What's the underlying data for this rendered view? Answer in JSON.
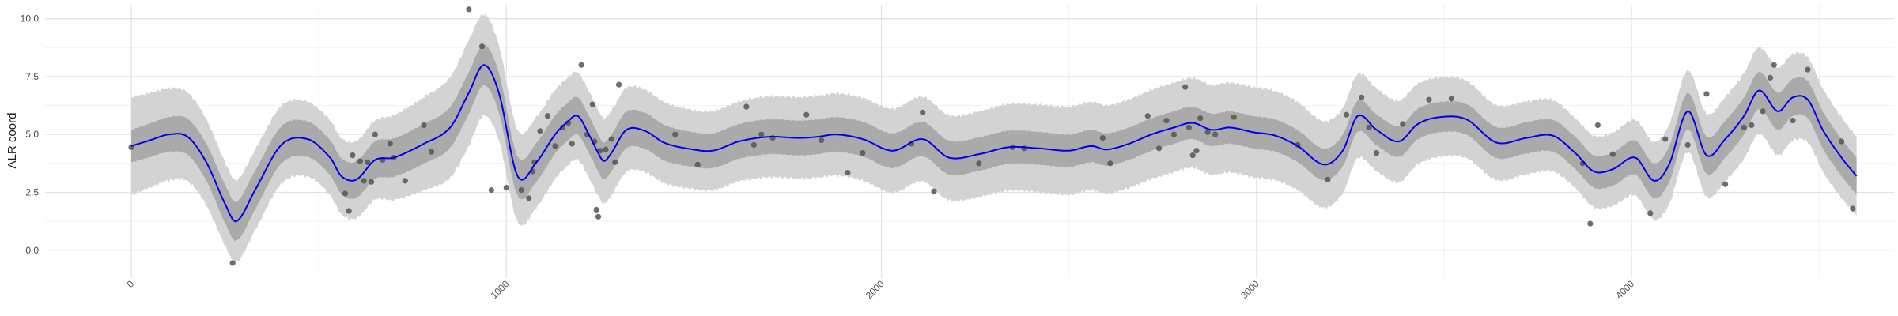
{
  "chart_data": {
    "type": "line",
    "title": "",
    "xlabel": "",
    "ylabel": "ALR coord",
    "xlim": [
      -230,
      4700
    ],
    "ylim": [
      -1.2,
      10.6
    ],
    "x_ticks": [
      0,
      1000,
      2000,
      3000,
      4000
    ],
    "x_tick_labels": [
      "0",
      "1000",
      "2000",
      "3000",
      "4000"
    ],
    "y_ticks": [
      0.0,
      2.5,
      5.0,
      7.5,
      10.0
    ],
    "y_tick_labels": [
      "0.0",
      "2.5",
      "5.0",
      "7.5",
      "10.0"
    ],
    "grid": true,
    "legend": "none",
    "colors": {
      "mean_line": "#0000ee",
      "inner_band": "#aaaaaa",
      "outer_band": "#d3d3d3",
      "points": "#555555",
      "grid_major": "#e2e2e2",
      "grid_minor": "#f1f1f1"
    },
    "mean_curve": {
      "x": [
        0,
        50,
        100,
        150,
        200,
        250,
        280,
        330,
        400,
        470,
        530,
        560,
        600,
        650,
        700,
        780,
        850,
        900,
        940,
        980,
        1030,
        1080,
        1130,
        1160,
        1190,
        1220,
        1245,
        1260,
        1280,
        1320,
        1370,
        1420,
        1480,
        1550,
        1620,
        1700,
        1780,
        1830,
        1880,
        1950,
        2030,
        2110,
        2180,
        2260,
        2340,
        2420,
        2500,
        2560,
        2600,
        2660,
        2720,
        2780,
        2830,
        2880,
        2930,
        2990,
        3050,
        3110,
        3180,
        3230,
        3270,
        3320,
        3380,
        3430,
        3490,
        3560,
        3640,
        3720,
        3790,
        3850,
        3900,
        3950,
        4010,
        4060,
        4100,
        4150,
        4200,
        4250,
        4300,
        4340,
        4390,
        4430,
        4470,
        4510,
        4560,
        4600
      ],
      "y": [
        4.5,
        4.75,
        5.0,
        4.9,
        3.8,
        2.0,
        1.25,
        2.6,
        4.55,
        4.8,
        4.0,
        3.2,
        3.05,
        3.9,
        4.0,
        4.6,
        5.3,
        6.8,
        8.0,
        6.8,
        3.2,
        3.8,
        5.0,
        5.5,
        5.8,
        5.0,
        4.2,
        3.85,
        4.2,
        5.2,
        5.15,
        4.65,
        4.4,
        4.3,
        4.7,
        4.9,
        4.85,
        4.9,
        5.0,
        4.8,
        4.3,
        4.8,
        4.0,
        4.15,
        4.45,
        4.4,
        4.3,
        4.5,
        4.35,
        4.6,
        5.0,
        5.3,
        5.5,
        5.2,
        5.3,
        5.1,
        4.95,
        4.5,
        3.7,
        4.3,
        5.8,
        5.2,
        4.7,
        5.45,
        5.75,
        5.65,
        4.65,
        4.85,
        4.95,
        4.2,
        3.4,
        3.5,
        4.0,
        3.0,
        3.7,
        6.0,
        4.1,
        4.8,
        5.8,
        6.9,
        6.0,
        6.6,
        6.5,
        5.2,
        4.0,
        3.2
      ]
    },
    "inner_band_halfwidth": {
      "x": [
        0,
        300,
        500,
        900,
        1000,
        1500,
        2000,
        2500,
        3000,
        3500,
        3900,
        4200,
        4600
      ],
      "y": [
        0.7,
        0.85,
        0.75,
        0.9,
        0.85,
        0.75,
        0.75,
        0.7,
        0.7,
        0.65,
        0.7,
        0.8,
        0.8
      ]
    },
    "outer_band_halfwidth": {
      "x": [
        0,
        250,
        500,
        650,
        900,
        1000,
        1500,
        2000,
        2500,
        3000,
        3500,
        3850,
        4200,
        4400,
        4600
      ],
      "y": [
        2.1,
        1.8,
        1.6,
        1.7,
        2.3,
        2.0,
        1.7,
        1.8,
        1.9,
        1.95,
        1.7,
        1.5,
        1.8,
        1.9,
        1.7
      ]
    },
    "points": [
      {
        "x": 0,
        "y": 4.45
      },
      {
        "x": 270,
        "y": -0.55
      },
      {
        "x": 570,
        "y": 2.45
      },
      {
        "x": 580,
        "y": 1.7
      },
      {
        "x": 590,
        "y": 4.1
      },
      {
        "x": 610,
        "y": 3.85
      },
      {
        "x": 620,
        "y": 3.0
      },
      {
        "x": 630,
        "y": 3.8
      },
      {
        "x": 640,
        "y": 2.95
      },
      {
        "x": 650,
        "y": 5.0
      },
      {
        "x": 670,
        "y": 3.9
      },
      {
        "x": 690,
        "y": 4.6
      },
      {
        "x": 700,
        "y": 4.0
      },
      {
        "x": 730,
        "y": 3.0
      },
      {
        "x": 780,
        "y": 5.4
      },
      {
        "x": 800,
        "y": 4.25
      },
      {
        "x": 900,
        "y": 10.4
      },
      {
        "x": 935,
        "y": 8.8
      },
      {
        "x": 960,
        "y": 2.6
      },
      {
        "x": 1000,
        "y": 2.7
      },
      {
        "x": 1040,
        "y": 2.6
      },
      {
        "x": 1060,
        "y": 2.25
      },
      {
        "x": 1070,
        "y": 3.4
      },
      {
        "x": 1075,
        "y": 3.8
      },
      {
        "x": 1090,
        "y": 5.15
      },
      {
        "x": 1110,
        "y": 5.8
      },
      {
        "x": 1130,
        "y": 4.5
      },
      {
        "x": 1150,
        "y": 5.3
      },
      {
        "x": 1165,
        "y": 5.5
      },
      {
        "x": 1175,
        "y": 4.6
      },
      {
        "x": 1200,
        "y": 8.0
      },
      {
        "x": 1215,
        "y": 5.0
      },
      {
        "x": 1230,
        "y": 6.3
      },
      {
        "x": 1235,
        "y": 4.7
      },
      {
        "x": 1240,
        "y": 1.75
      },
      {
        "x": 1245,
        "y": 1.45
      },
      {
        "x": 1250,
        "y": 4.3
      },
      {
        "x": 1265,
        "y": 4.35
      },
      {
        "x": 1280,
        "y": 4.8
      },
      {
        "x": 1290,
        "y": 3.8
      },
      {
        "x": 1300,
        "y": 7.15
      },
      {
        "x": 1450,
        "y": 5.0
      },
      {
        "x": 1510,
        "y": 3.7
      },
      {
        "x": 1640,
        "y": 6.2
      },
      {
        "x": 1660,
        "y": 4.55
      },
      {
        "x": 1680,
        "y": 5.0
      },
      {
        "x": 1710,
        "y": 4.85
      },
      {
        "x": 1800,
        "y": 5.85
      },
      {
        "x": 1840,
        "y": 4.75
      },
      {
        "x": 1910,
        "y": 3.35
      },
      {
        "x": 1950,
        "y": 4.2
      },
      {
        "x": 2080,
        "y": 4.6
      },
      {
        "x": 2110,
        "y": 5.95
      },
      {
        "x": 2140,
        "y": 2.55
      },
      {
        "x": 2260,
        "y": 3.75
      },
      {
        "x": 2350,
        "y": 4.45
      },
      {
        "x": 2380,
        "y": 4.4
      },
      {
        "x": 2590,
        "y": 4.85
      },
      {
        "x": 2610,
        "y": 3.75
      },
      {
        "x": 2710,
        "y": 5.8
      },
      {
        "x": 2740,
        "y": 4.4
      },
      {
        "x": 2760,
        "y": 5.6
      },
      {
        "x": 2780,
        "y": 5.0
      },
      {
        "x": 2810,
        "y": 7.05
      },
      {
        "x": 2820,
        "y": 5.3
      },
      {
        "x": 2830,
        "y": 4.1
      },
      {
        "x": 2840,
        "y": 4.3
      },
      {
        "x": 2850,
        "y": 5.7
      },
      {
        "x": 2870,
        "y": 5.1
      },
      {
        "x": 2890,
        "y": 5.0
      },
      {
        "x": 2940,
        "y": 5.75
      },
      {
        "x": 3110,
        "y": 4.55
      },
      {
        "x": 3190,
        "y": 3.05
      },
      {
        "x": 3240,
        "y": 5.85
      },
      {
        "x": 3280,
        "y": 6.6
      },
      {
        "x": 3300,
        "y": 5.3
      },
      {
        "x": 3320,
        "y": 4.2
      },
      {
        "x": 3390,
        "y": 5.45
      },
      {
        "x": 3460,
        "y": 6.5
      },
      {
        "x": 3520,
        "y": 6.55
      },
      {
        "x": 3870,
        "y": 3.75
      },
      {
        "x": 3890,
        "y": 1.15
      },
      {
        "x": 3910,
        "y": 5.4
      },
      {
        "x": 3950,
        "y": 4.15
      },
      {
        "x": 4050,
        "y": 1.6
      },
      {
        "x": 4090,
        "y": 4.8
      },
      {
        "x": 4150,
        "y": 4.55
      },
      {
        "x": 4200,
        "y": 6.75
      },
      {
        "x": 4250,
        "y": 2.85
      },
      {
        "x": 4300,
        "y": 5.3
      },
      {
        "x": 4320,
        "y": 5.4
      },
      {
        "x": 4350,
        "y": 6.0
      },
      {
        "x": 4370,
        "y": 7.45
      },
      {
        "x": 4380,
        "y": 8.0
      },
      {
        "x": 4430,
        "y": 5.6
      },
      {
        "x": 4470,
        "y": 7.8
      },
      {
        "x": 4560,
        "y": 4.7
      },
      {
        "x": 4590,
        "y": 1.8
      }
    ]
  }
}
